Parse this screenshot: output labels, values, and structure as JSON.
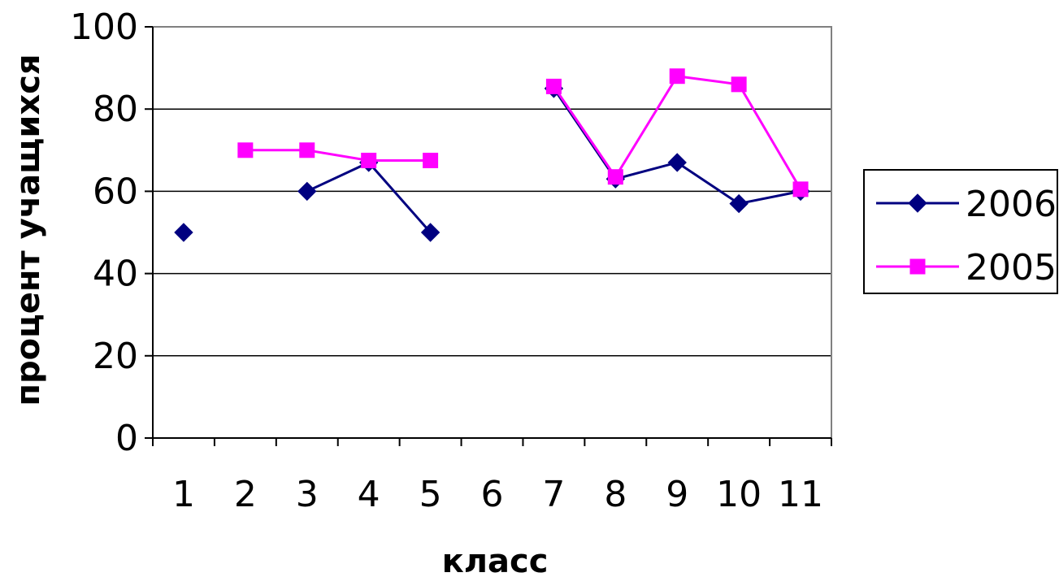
{
  "chart_data": {
    "type": "line",
    "title": "",
    "xlabel": "класс",
    "ylabel": "процент учащихся",
    "categories": [
      "1",
      "2",
      "3",
      "4",
      "5",
      "6",
      "7",
      "8",
      "9",
      "10",
      "11"
    ],
    "ylim": [
      0,
      100
    ],
    "yticks": [
      "0",
      "20",
      "40",
      "60",
      "80",
      "100"
    ],
    "grid": true,
    "legend_position": "right",
    "series": [
      {
        "name": "2006",
        "color": "#000080",
        "marker": "diamond",
        "values": [
          50,
          null,
          60,
          67,
          50,
          null,
          85,
          63,
          67,
          57,
          60
        ]
      },
      {
        "name": "2005",
        "color": "#ff00ff",
        "marker": "square",
        "values": [
          null,
          70,
          70,
          67.5,
          67.5,
          null,
          85.5,
          63.5,
          88,
          86,
          60.5
        ]
      }
    ]
  }
}
